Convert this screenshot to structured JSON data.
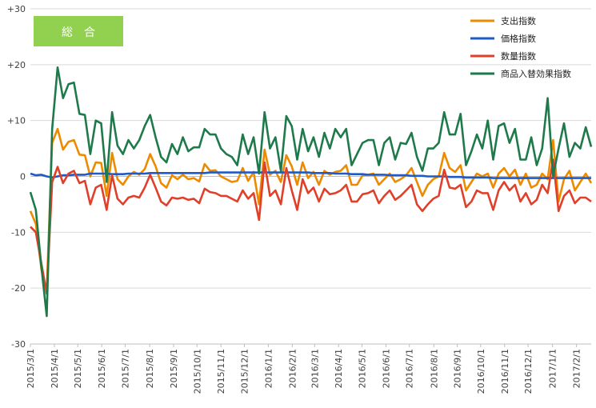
{
  "chart_data": {
    "type": "line",
    "title": "総　合",
    "xlabel": "",
    "ylabel": "",
    "ylim": [
      -30,
      30
    ],
    "yticks": [
      30,
      20,
      10,
      0,
      -10,
      -20,
      -30
    ],
    "ytick_labels": [
      "+30",
      "+20",
      "+10",
      "0",
      "-10",
      "-20",
      "-30"
    ],
    "xtick_labels": [
      "2015/3/1",
      "2015/4/1",
      "2015/5/1",
      "2015/6/1",
      "2015/7/1",
      "2015/8/1",
      "2015/9/1",
      "2015/10/1",
      "2015/11/1",
      "2015/12/1",
      "2016/1/1",
      "2016/2/1",
      "2016/3/1",
      "2016/4/1",
      "2016/5/1",
      "2016/6/1",
      "2016/7/1",
      "2016/8/1",
      "2016/9/1",
      "2016/10/1",
      "2016/11/1",
      "2016/12/1",
      "2017/1/1",
      "2017/2/1"
    ],
    "xtick_weeks": [
      0,
      4.4,
      8.7,
      13.1,
      17.4,
      21.9,
      26.3,
      30.6,
      35,
      39.3,
      43.7,
      48.1,
      52.2,
      56.6,
      60.9,
      65.3,
      69.6,
      74.1,
      78.4,
      82.7,
      87.1,
      91.4,
      95.9,
      100.3
    ],
    "x_weeks": [
      0,
      1,
      2,
      3,
      4,
      5,
      6,
      7,
      8,
      9,
      10,
      11,
      12,
      13,
      14,
      15,
      16,
      17,
      18,
      19,
      20,
      21,
      22,
      23,
      24,
      25,
      26,
      27,
      28,
      29,
      30,
      31,
      32,
      33,
      34,
      35,
      36,
      37,
      38,
      39,
      40,
      41,
      42,
      43,
      44,
      45,
      46,
      47,
      48,
      49,
      50,
      51,
      52,
      53,
      54,
      55,
      56,
      57,
      58,
      59,
      60,
      61,
      62,
      63,
      64,
      65,
      66,
      67,
      68,
      69,
      70,
      71,
      72,
      73,
      74,
      75,
      76,
      77,
      78,
      79,
      80,
      81,
      82,
      83,
      84,
      85,
      86,
      87,
      88,
      89,
      90,
      91,
      92,
      93,
      94,
      95,
      96,
      97,
      98,
      99,
      100,
      101,
      102,
      103
    ],
    "series": [
      {
        "name": "支出指数",
        "color": "#ED8B00",
        "values": [
          -6.2,
          -8.5,
          -16.5,
          -20.5,
          6.0,
          8.5,
          4.8,
          6.2,
          6.5,
          3.9,
          3.8,
          0.0,
          2.5,
          2.4,
          -3.5,
          4.2,
          -0.5,
          -1.5,
          0.0,
          0.8,
          0.3,
          1.3,
          4.0,
          1.8,
          -1.2,
          -2.0,
          0.2,
          -0.5,
          0.3,
          -0.5,
          -0.3,
          -0.9,
          2.2,
          1.0,
          1.1,
          0.0,
          -0.5,
          -1.0,
          -0.8,
          1.5,
          -0.8,
          0.8,
          -5.0,
          4.8,
          0.3,
          1.0,
          -1.0,
          3.8,
          1.8,
          -1.5,
          2.5,
          -0.3,
          0.8,
          -1.5,
          1.0,
          0.3,
          0.8,
          1.0,
          2.0,
          -1.5,
          -1.5,
          0.2,
          0.3,
          0.5,
          -1.5,
          -0.5,
          0.5,
          -1.0,
          -0.5,
          0.2,
          1.5,
          -1.0,
          -3.5,
          -1.5,
          -0.5,
          0.0,
          4.2,
          1.5,
          0.8,
          2.0,
          -2.5,
          -1.0,
          0.5,
          0.0,
          0.5,
          -2.0,
          0.5,
          1.5,
          0.0,
          1.2,
          -1.5,
          0.5,
          -2.0,
          -1.5,
          0.5,
          -0.5,
          6.5,
          -4.5,
          -0.5,
          1.0,
          -2.5,
          -1.0,
          0.5,
          -1.2
        ]
      },
      {
        "name": "価格指数",
        "color": "#1F5BC6",
        "values": [
          0.5,
          0.2,
          0.3,
          0.0,
          -0.2,
          0.0,
          0.2,
          0.2,
          0.3,
          0.3,
          0.3,
          0.5,
          0.5,
          0.5,
          0.5,
          0.4,
          0.4,
          0.4,
          0.5,
          0.5,
          0.5,
          0.5,
          0.6,
          0.6,
          0.6,
          0.6,
          0.6,
          0.6,
          0.6,
          0.6,
          0.6,
          0.6,
          0.6,
          0.7,
          0.7,
          0.7,
          0.7,
          0.7,
          0.7,
          0.7,
          0.7,
          0.7,
          0.7,
          0.7,
          0.7,
          0.7,
          0.7,
          0.7,
          0.7,
          0.7,
          0.7,
          0.7,
          0.6,
          0.6,
          0.6,
          0.6,
          0.5,
          0.5,
          0.5,
          0.4,
          0.4,
          0.4,
          0.3,
          0.3,
          0.3,
          0.3,
          0.2,
          0.2,
          0.2,
          0.2,
          0.1,
          0.1,
          0.1,
          0.0,
          0.0,
          0.0,
          0.0,
          -0.1,
          -0.1,
          -0.1,
          -0.2,
          -0.2,
          -0.2,
          -0.2,
          -0.2,
          -0.3,
          -0.3,
          -0.3,
          -0.3,
          -0.3,
          -0.3,
          -0.3,
          -0.3,
          -0.3,
          -0.3,
          -0.3,
          -0.3,
          -0.3,
          -0.3,
          -0.3,
          -0.3,
          -0.3,
          -0.3,
          -0.3
        ]
      },
      {
        "name": "数量指数",
        "color": "#E0402A",
        "values": [
          -9.0,
          -10.0,
          -15.5,
          -21.0,
          -1.0,
          1.7,
          -1.2,
          0.5,
          1.0,
          -1.2,
          -0.8,
          -5.0,
          -2.0,
          -1.5,
          -6.0,
          0.2,
          -4.0,
          -5.0,
          -3.8,
          -3.5,
          -3.8,
          -2.0,
          0.3,
          -2.0,
          -4.5,
          -5.2,
          -3.8,
          -4.0,
          -3.8,
          -4.2,
          -4.0,
          -4.8,
          -2.2,
          -2.8,
          -3.0,
          -3.5,
          -3.5,
          -4.0,
          -4.5,
          -2.5,
          -4.0,
          -3.0,
          -7.8,
          2.5,
          -3.5,
          -2.5,
          -5.0,
          1.5,
          -2.5,
          -6.0,
          -0.5,
          -3.0,
          -2.0,
          -4.5,
          -2.2,
          -3.2,
          -3.0,
          -2.5,
          -1.5,
          -4.5,
          -4.5,
          -3.2,
          -3.0,
          -2.5,
          -4.8,
          -3.5,
          -2.5,
          -4.2,
          -3.5,
          -2.5,
          -1.5,
          -5.0,
          -6.2,
          -5.0,
          -4.0,
          -3.5,
          1.2,
          -2.0,
          -2.2,
          -1.5,
          -5.5,
          -4.5,
          -2.5,
          -3.0,
          -3.0,
          -6.0,
          -2.5,
          -1.0,
          -2.5,
          -1.5,
          -4.5,
          -3.0,
          -5.0,
          -4.2,
          -1.5,
          -3.0,
          3.0,
          -6.2,
          -3.5,
          -2.5,
          -4.8,
          -3.8,
          -3.8,
          -4.5
        ]
      },
      {
        "name": "商品入替効果指数",
        "color": "#1E7A4A",
        "values": [
          -2.8,
          -6.0,
          -16.0,
          -25.0,
          8.5,
          19.5,
          14.0,
          16.5,
          16.8,
          11.2,
          11.0,
          4.0,
          10.0,
          9.5,
          -1.0,
          11.5,
          5.5,
          4.0,
          6.5,
          5.0,
          6.5,
          9.0,
          11.0,
          7.0,
          3.5,
          2.5,
          5.8,
          4.0,
          7.0,
          4.5,
          5.2,
          5.2,
          8.5,
          7.5,
          7.5,
          5.0,
          4.0,
          3.5,
          2.0,
          7.5,
          4.0,
          7.0,
          0.5,
          11.5,
          5.0,
          7.0,
          1.0,
          10.8,
          9.0,
          3.0,
          8.5,
          4.5,
          7.0,
          3.5,
          7.8,
          5.0,
          8.5,
          7.0,
          8.5,
          2.0,
          4.0,
          6.0,
          6.5,
          6.5,
          2.0,
          6.0,
          7.0,
          3.0,
          6.0,
          5.8,
          7.8,
          3.5,
          1.0,
          5.0,
          5.0,
          6.0,
          11.5,
          7.5,
          7.5,
          11.2,
          2.0,
          4.5,
          7.5,
          5.0,
          10.0,
          3.0,
          9.0,
          9.5,
          6.0,
          8.5,
          3.0,
          3.0,
          7.0,
          2.0,
          5.0,
          14.0,
          0.0,
          5.0,
          9.5,
          3.5,
          6.0,
          5.0,
          8.8,
          5.3
        ]
      }
    ]
  }
}
